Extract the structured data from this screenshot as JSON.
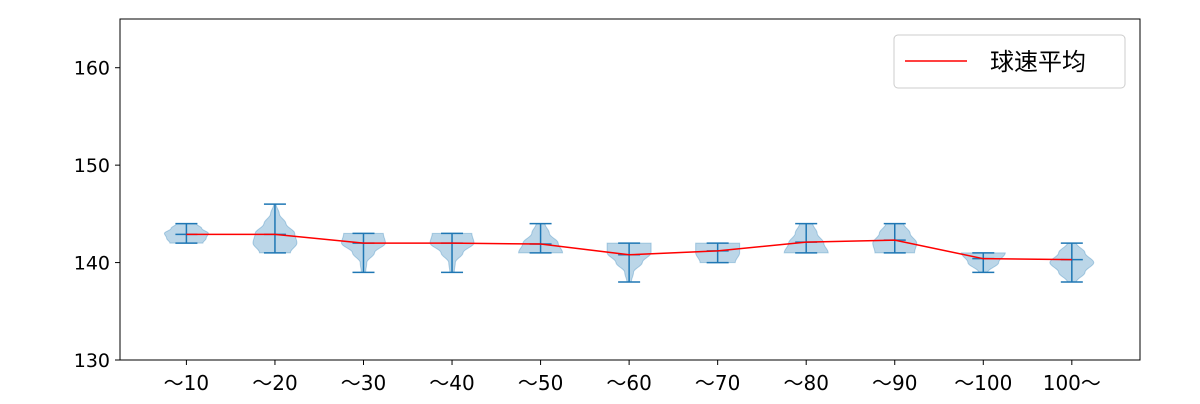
{
  "chart_data": {
    "type": "violin",
    "title": "",
    "xlabel": "",
    "ylabel": "",
    "categories": [
      "～10",
      "～20",
      "～30",
      "～40",
      "～50",
      "～60",
      "～70",
      "～80",
      "～90",
      "～100",
      "100～"
    ],
    "ylim": [
      130,
      165
    ],
    "yticks": [
      130,
      140,
      150,
      160
    ],
    "grid": false,
    "legend": {
      "placement": "top-right",
      "entries": [
        {
          "name": "球速平均",
          "color": "#ff0000"
        }
      ]
    },
    "violin_color": "#1f77b4",
    "violins": [
      {
        "min": 142,
        "max": 144,
        "mean": 142.9,
        "density": [
          0.75,
          0.9,
          1,
          0.7,
          0.45
        ]
      },
      {
        "min": 141,
        "max": 146,
        "mean": 142.9,
        "density": [
          0.7,
          1,
          0.9,
          0.5,
          0.2,
          0.05
        ]
      },
      {
        "min": 139,
        "max": 143,
        "mean": 142.0,
        "density": [
          0.1,
          0.15,
          0.5,
          1,
          0.9
        ]
      },
      {
        "min": 139,
        "max": 143,
        "mean": 142.0,
        "density": [
          0.1,
          0.15,
          0.5,
          1,
          0.9
        ]
      },
      {
        "min": 141,
        "max": 144,
        "mean": 141.9,
        "density": [
          1,
          0.8,
          0.4,
          0.2
        ]
      },
      {
        "min": 138,
        "max": 142,
        "mean": 140.8,
        "density": [
          0.1,
          0.2,
          0.6,
          1,
          1
        ]
      },
      {
        "min": 140,
        "max": 142,
        "mean": 141.2,
        "density": [
          0.8,
          1,
          1
        ]
      },
      {
        "min": 141,
        "max": 144,
        "mean": 142.1,
        "density": [
          1,
          0.8,
          0.5,
          0.3
        ]
      },
      {
        "min": 141,
        "max": 144,
        "mean": 142.3,
        "density": [
          0.9,
          1,
          0.7,
          0.4
        ]
      },
      {
        "min": 139,
        "max": 141,
        "mean": 140.4,
        "density": [
          0.2,
          0.7,
          1
        ]
      },
      {
        "min": 138,
        "max": 142,
        "mean": 140.3,
        "density": [
          0.2,
          0.6,
          1,
          0.6,
          0.2
        ]
      }
    ],
    "mean_line": {
      "name": "球速平均",
      "color": "#ff0000"
    }
  }
}
